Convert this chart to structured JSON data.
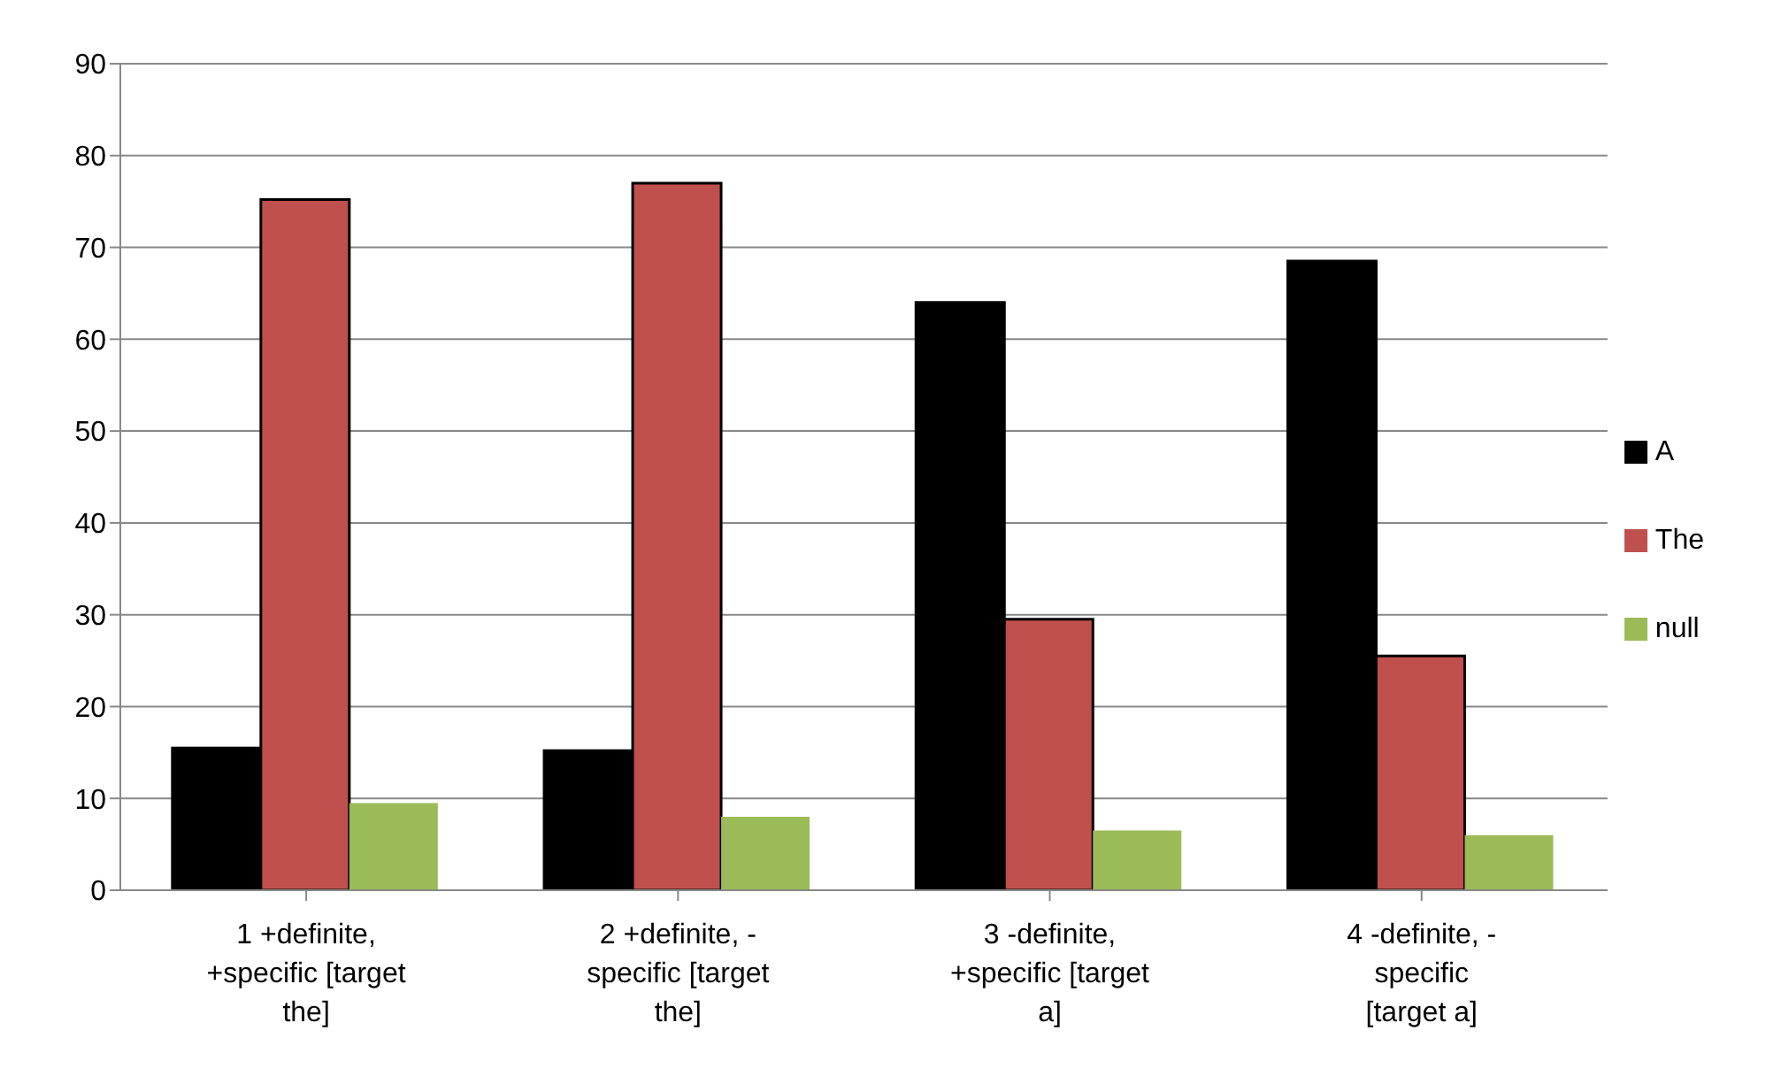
{
  "chart_data": {
    "type": "bar",
    "categories": [
      "1 +definite, +specific [target the]",
      "2 +definite, - specific  [target the]",
      "3 -definite, +specific  [target a]",
      "4 -definite, - specific    [target a]"
    ],
    "series": [
      {
        "name": "A",
        "color": "#000000",
        "values": [
          15.5,
          15.2,
          64,
          68.5
        ]
      },
      {
        "name": "The",
        "color": "#c0504d",
        "values": [
          75.2,
          77,
          29.5,
          25.5
        ]
      },
      {
        "name": "null",
        "color": "#9bbb59",
        "values": [
          9.5,
          8,
          6.5,
          6
        ]
      }
    ],
    "ylim": [
      0,
      90
    ],
    "yticks": [
      0,
      10,
      20,
      30,
      40,
      50,
      60,
      70,
      80,
      90
    ],
    "grid": "y",
    "legend": "right"
  }
}
